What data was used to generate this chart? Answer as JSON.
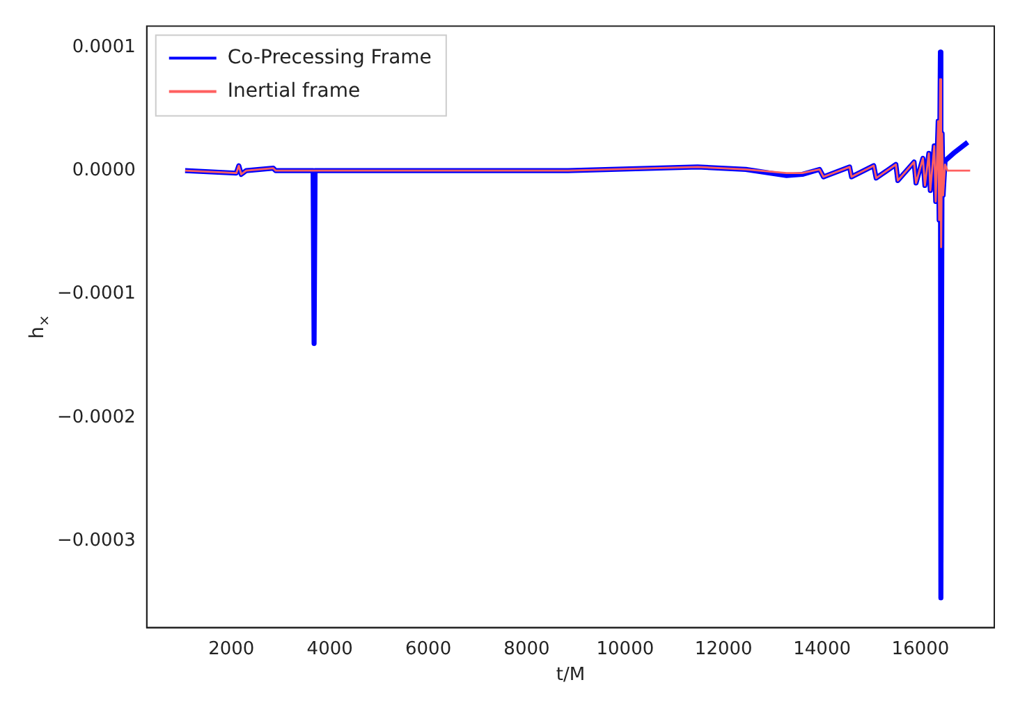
{
  "chart_data": {
    "type": "line",
    "xlabel": "t/M",
    "ylabel": "h$_{×}$",
    "xlim": [
      280,
      17500
    ],
    "ylim": [
      -0.00037,
      0.000117
    ],
    "xticks": [
      2000,
      4000,
      6000,
      8000,
      10000,
      12000,
      14000,
      16000
    ],
    "yticks": [
      {
        "value": -0.0003,
        "label": "−0.0003"
      },
      {
        "value": -0.0002,
        "label": "−0.0002"
      },
      {
        "value": -0.0001,
        "label": "−0.0001"
      },
      {
        "value": 0,
        "label": "0.0000"
      },
      {
        "value": 0.0001,
        "label": "0.0001"
      }
    ],
    "legend": "top left",
    "grid": false,
    "series": [
      {
        "name": "Co-Precessing Frame",
        "color": "#0000ff",
        "x": [
          1060,
          2100,
          2150,
          2200,
          2300,
          2850,
          2900,
          3660,
          3680,
          3700,
          8840,
          11470,
          12450,
          13280,
          13600,
          13950,
          14030,
          14560,
          14600,
          15050,
          15100,
          15500,
          15540,
          15870,
          15910,
          16050,
          16090,
          16170,
          16200,
          16280,
          16310,
          16360,
          16380,
          16405,
          16415,
          16440,
          16460,
          16500,
          16700,
          16960
        ],
        "values": [
          0,
          -2e-06,
          4e-06,
          -3e-06,
          0,
          2e-06,
          0,
          0,
          -0.00014,
          0,
          0,
          3e-06,
          1e-06,
          -4e-06,
          -3e-06,
          1e-06,
          -5e-06,
          3e-06,
          -5e-06,
          4e-06,
          -6e-06,
          5e-06,
          -8e-06,
          7e-06,
          -1e-05,
          1e-05,
          -1.2e-05,
          1.4e-05,
          -1.6e-05,
          2e-05,
          -2.5e-05,
          4e-05,
          -4e-05,
          9.6e-05,
          -0.000346,
          3e-05,
          -2e-05,
          8e-06,
          1.5e-05,
          2.3e-05
        ]
      },
      {
        "name": "Inertial frame",
        "color": "#ff6060",
        "x": [
          1060,
          2100,
          2150,
          2200,
          2300,
          2850,
          2900,
          8840,
          11470,
          12450,
          13280,
          13600,
          13950,
          14030,
          14560,
          14600,
          15050,
          15100,
          15500,
          15540,
          15870,
          15910,
          16050,
          16090,
          16170,
          16200,
          16280,
          16310,
          16360,
          16380,
          16400,
          16420,
          16440,
          16460,
          16500,
          16550,
          17010
        ],
        "values": [
          0,
          -2e-06,
          4e-06,
          -3e-06,
          0,
          2e-06,
          0,
          0,
          3e-06,
          1e-06,
          -2e-06,
          -2e-06,
          1e-06,
          -5e-06,
          3e-06,
          -5e-06,
          4e-06,
          -6e-06,
          5e-06,
          -8e-06,
          7e-06,
          -1e-05,
          1e-05,
          -1.2e-05,
          1.4e-05,
          -1.6e-05,
          2e-05,
          -2.5e-05,
          4e-05,
          -4e-05,
          7.4e-05,
          -6.2e-05,
          3e-05,
          -2e-05,
          5e-06,
          0,
          0
        ]
      }
    ]
  }
}
